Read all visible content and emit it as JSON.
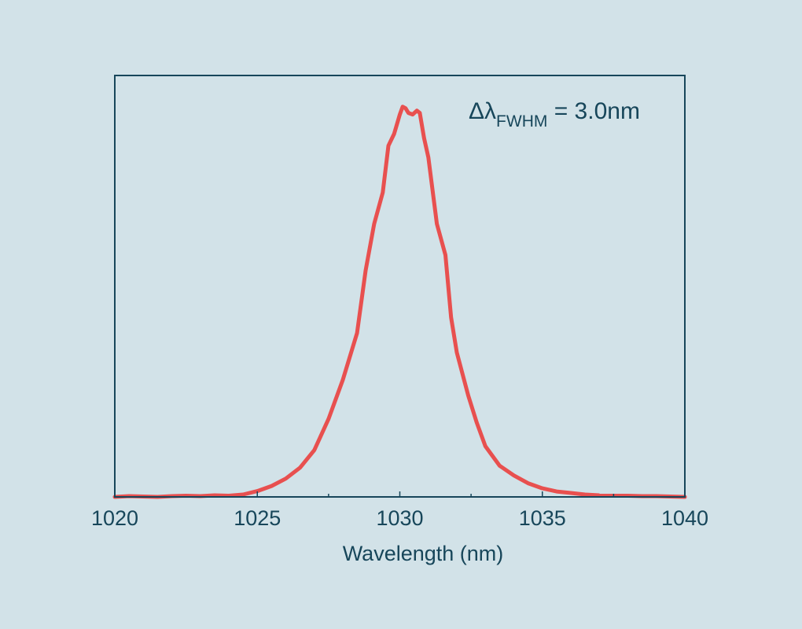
{
  "chart_data": {
    "type": "line",
    "xlabel": "Wavelength (nm)",
    "ylabel": "",
    "xlim": [
      1020,
      1040
    ],
    "ylim": [
      0,
      1.08
    ],
    "x_ticks": [
      1020,
      1025,
      1030,
      1035,
      1040
    ],
    "x_tick_labels": [
      "1020",
      "1025",
      "1030",
      "1035",
      "1040"
    ],
    "x_minor_ticks": [
      1027.5,
      1032.5,
      1037.5
    ],
    "y_tick_labels": false,
    "grid": false,
    "annotation": {
      "symbol": "Δλ",
      "subscript": "FWHM",
      "value": " = 3.0nm",
      "placement": "top-right"
    },
    "colors": {
      "line": "#e8504f",
      "axis": "#17465a",
      "background": "#d2e2e8"
    },
    "series": [
      {
        "x": [
          1020.0,
          1020.5,
          1021.0,
          1021.5,
          1022.0,
          1022.5,
          1023.0,
          1023.5,
          1024.0,
          1024.5,
          1025.0,
          1025.5,
          1026.0,
          1026.5,
          1027.0,
          1027.5,
          1028.0,
          1028.5,
          1028.8,
          1029.1,
          1029.4,
          1029.6,
          1029.8,
          1030.0,
          1030.1,
          1030.2,
          1030.3,
          1030.45,
          1030.6,
          1030.7,
          1030.85,
          1031.0,
          1031.3,
          1031.6,
          1031.8,
          1032.0,
          1032.4,
          1032.7,
          1033.0,
          1033.5,
          1034.0,
          1034.5,
          1035.0,
          1035.5,
          1036.0,
          1036.5,
          1037.0,
          1037.5,
          1038.0,
          1038.5,
          1039.0,
          1039.5,
          1040.0
        ],
        "y": [
          0.0,
          0.002,
          0.001,
          0.0,
          0.002,
          0.003,
          0.002,
          0.004,
          0.003,
          0.006,
          0.015,
          0.028,
          0.047,
          0.075,
          0.12,
          0.2,
          0.3,
          0.42,
          0.58,
          0.7,
          0.78,
          0.9,
          0.93,
          0.98,
          1.0,
          0.996,
          0.984,
          0.98,
          0.99,
          0.984,
          0.92,
          0.87,
          0.7,
          0.62,
          0.46,
          0.37,
          0.26,
          0.19,
          0.13,
          0.08,
          0.055,
          0.035,
          0.022,
          0.014,
          0.01,
          0.006,
          0.004,
          0.003,
          0.003,
          0.002,
          0.002,
          0.001,
          0.0
        ]
      }
    ]
  }
}
